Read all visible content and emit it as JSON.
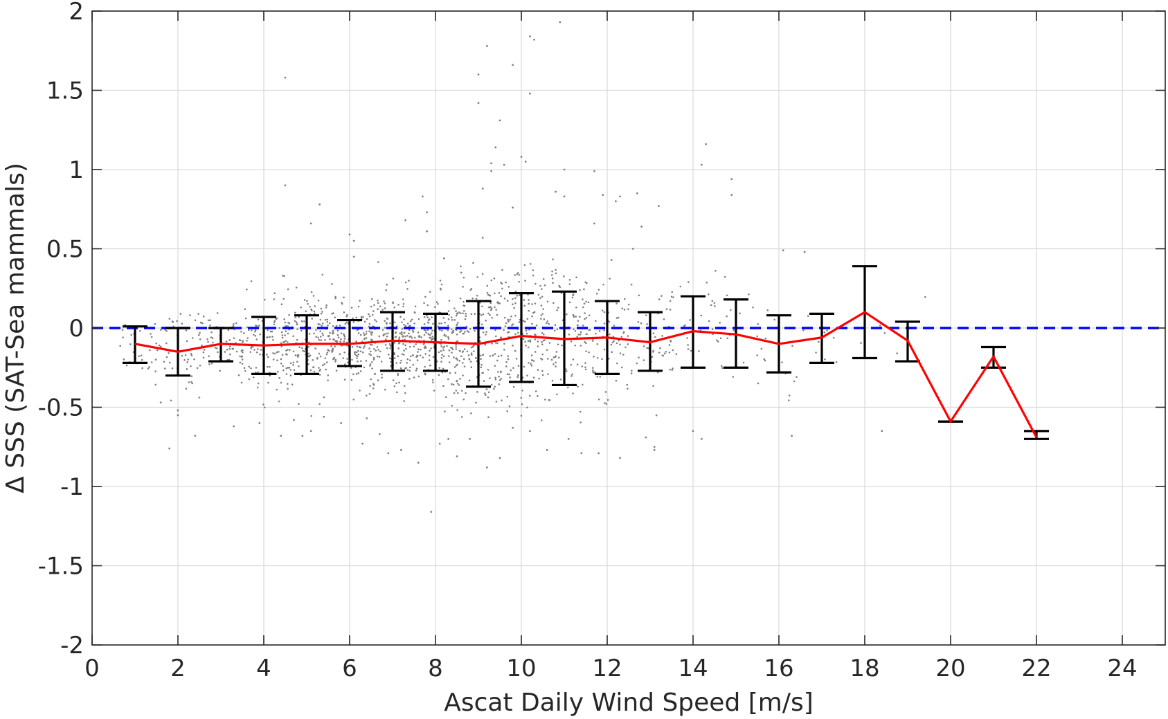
{
  "chart_data": {
    "type": "scatter",
    "title": "",
    "xlabel": "Ascat Daily Wind Speed [m/s]",
    "ylabel": "Δ SSS (SAT-Sea mammals)",
    "xlim": [
      0,
      25
    ],
    "ylim": [
      -2,
      2
    ],
    "xticks": [
      0,
      2,
      4,
      6,
      8,
      10,
      12,
      14,
      16,
      18,
      20,
      22,
      24
    ],
    "xtick_labels": [
      "0",
      "2",
      "4",
      "6",
      "8",
      "10",
      "12",
      "14",
      "16",
      "18",
      "20",
      "22",
      "24"
    ],
    "yticks": [
      2,
      1.5,
      1,
      0.5,
      0,
      -0.5,
      -1,
      -1.5,
      -2
    ],
    "ytick_labels": [
      "2",
      "1.5",
      "1",
      "0.5",
      "0",
      "-0.5",
      "-1",
      "-1.5",
      "-2"
    ],
    "grid": true,
    "colors": {
      "scatter": "#808080",
      "mean_line": "#ff0000",
      "error_bars": "#000000",
      "zero_line": "#0000ff"
    },
    "reference_line": {
      "y": 0,
      "style": "dashed"
    },
    "binned": {
      "x": [
        1,
        2,
        3,
        4,
        5,
        6,
        7,
        8,
        9,
        10,
        11,
        12,
        13,
        14,
        15,
        16,
        17,
        18,
        19,
        20,
        21,
        22
      ],
      "mean": [
        -0.1,
        -0.15,
        -0.1,
        -0.11,
        -0.1,
        -0.1,
        -0.08,
        -0.09,
        -0.1,
        -0.05,
        -0.07,
        -0.06,
        -0.09,
        -0.02,
        -0.04,
        -0.1,
        -0.06,
        0.1,
        -0.08,
        -0.59,
        -0.18,
        -0.69
      ],
      "lower": [
        -0.22,
        -0.3,
        -0.21,
        -0.29,
        -0.29,
        -0.24,
        -0.27,
        -0.27,
        -0.37,
        -0.34,
        -0.36,
        -0.29,
        -0.27,
        -0.25,
        -0.25,
        -0.28,
        -0.22,
        -0.19,
        -0.21,
        -0.59,
        -0.25,
        -0.7
      ],
      "upper": [
        0.01,
        0.0,
        0.0,
        0.07,
        0.08,
        0.05,
        0.1,
        0.09,
        0.17,
        0.22,
        0.23,
        0.17,
        0.1,
        0.2,
        0.18,
        0.08,
        0.09,
        0.39,
        0.04,
        -0.59,
        -0.12,
        -0.65
      ]
    },
    "outliers": [
      [
        4.5,
        1.58
      ],
      [
        4.5,
        0.9
      ],
      [
        5.3,
        0.78
      ],
      [
        5.1,
        0.66
      ],
      [
        6.0,
        0.59
      ],
      [
        6.1,
        0.55
      ],
      [
        6.1,
        0.45
      ],
      [
        7.3,
        0.68
      ],
      [
        7.7,
        0.83
      ],
      [
        7.8,
        0.73
      ],
      [
        7.8,
        0.61
      ],
      [
        8.2,
        0.44
      ],
      [
        8.6,
        0.35
      ],
      [
        9.0,
        1.6
      ],
      [
        9.0,
        1.42
      ],
      [
        9.2,
        1.78
      ],
      [
        9.1,
        0.57
      ],
      [
        9.1,
        0.88
      ],
      [
        9.3,
        1.04
      ],
      [
        9.3,
        0.99
      ],
      [
        9.4,
        1.14
      ],
      [
        9.5,
        1.31
      ],
      [
        9.6,
        1.03
      ],
      [
        9.8,
        1.66
      ],
      [
        9.8,
        0.76
      ],
      [
        10.0,
        1.08
      ],
      [
        10.1,
        1.05
      ],
      [
        10.2,
        1.84
      ],
      [
        10.3,
        1.82
      ],
      [
        10.2,
        1.48
      ],
      [
        10.9,
        1.93
      ],
      [
        10.8,
        0.86
      ],
      [
        11.0,
        0.83
      ],
      [
        11.0,
        1.0
      ],
      [
        11.7,
        0.99
      ],
      [
        11.7,
        0.66
      ],
      [
        11.9,
        0.84
      ],
      [
        12.2,
        0.8
      ],
      [
        12.3,
        0.83
      ],
      [
        12.1,
        0.43
      ],
      [
        12.6,
        0.5
      ],
      [
        12.8,
        0.64
      ],
      [
        12.7,
        0.85
      ],
      [
        13.2,
        0.77
      ],
      [
        14.3,
        1.16
      ],
      [
        14.2,
        1.03
      ],
      [
        14.9,
        0.94
      ],
      [
        14.9,
        0.84
      ],
      [
        16.1,
        0.49
      ],
      [
        16.6,
        0.48
      ],
      [
        1.8,
        -0.76
      ],
      [
        1.6,
        -0.47
      ],
      [
        2.0,
        -0.55
      ],
      [
        2.0,
        -0.52
      ],
      [
        2.4,
        -0.68
      ],
      [
        3.3,
        -0.62
      ],
      [
        3.9,
        -0.6
      ],
      [
        4.4,
        -0.68
      ],
      [
        4.7,
        -0.58
      ],
      [
        4.9,
        -0.68
      ],
      [
        5.1,
        -0.65
      ],
      [
        5.4,
        -0.56
      ],
      [
        5.8,
        -0.6
      ],
      [
        6.3,
        -0.73
      ],
      [
        6.4,
        -0.57
      ],
      [
        6.7,
        -0.67
      ],
      [
        6.9,
        -0.79
      ],
      [
        7.2,
        -0.77
      ],
      [
        7.6,
        -0.85
      ],
      [
        7.9,
        -1.16
      ],
      [
        8.1,
        -0.73
      ],
      [
        8.3,
        -0.7
      ],
      [
        8.5,
        -0.81
      ],
      [
        8.8,
        -0.7
      ],
      [
        9.2,
        -0.88
      ],
      [
        9.5,
        -0.82
      ],
      [
        9.8,
        -0.63
      ],
      [
        10.2,
        -0.65
      ],
      [
        10.6,
        -0.77
      ],
      [
        11.1,
        -0.7
      ],
      [
        11.4,
        -0.79
      ],
      [
        11.8,
        -0.79
      ],
      [
        12.3,
        -0.82
      ],
      [
        12.9,
        -0.69
      ],
      [
        13.1,
        -0.75
      ],
      [
        13.1,
        -0.77
      ],
      [
        14.0,
        -0.65
      ],
      [
        14.2,
        -0.7
      ],
      [
        16.3,
        -0.68
      ],
      [
        18.4,
        -0.65
      ]
    ]
  }
}
